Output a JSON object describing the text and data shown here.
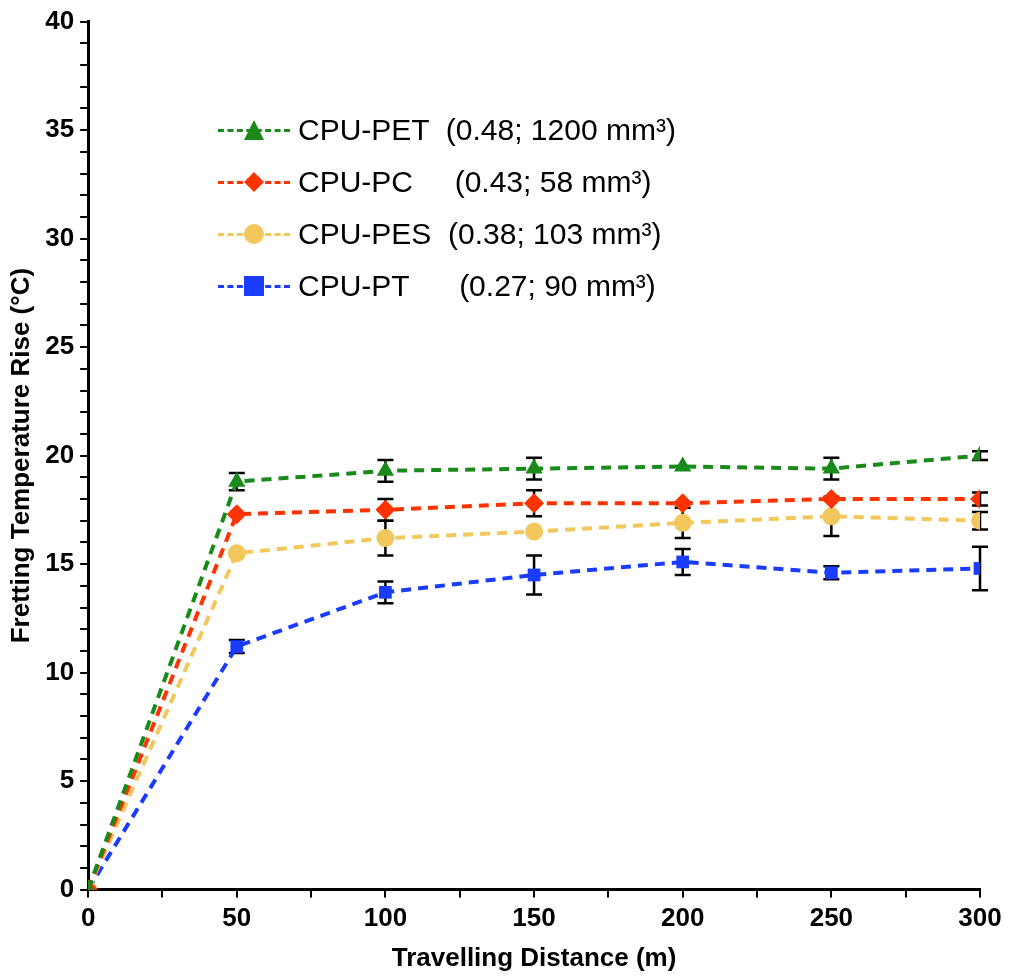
{
  "chart_data": {
    "type": "line",
    "xlabel": "Travelling Distance (m)",
    "ylabel": "Fretting Temperature Rise (°C)",
    "x": [
      0,
      50,
      100,
      150,
      200,
      250,
      300
    ],
    "xlim": [
      0,
      300
    ],
    "xticks": [
      0,
      {
        "value": 25,
        "label": null
      },
      50,
      {
        "value": 75,
        "label": null
      },
      100,
      {
        "value": 125,
        "label": null
      },
      150,
      {
        "value": 175,
        "label": null
      },
      200,
      {
        "value": 225,
        "label": null
      },
      250,
      {
        "value": 275,
        "label": null
      },
      300
    ],
    "ylim": [
      0,
      40
    ],
    "yticks": [
      0,
      {
        "value": 1,
        "label": null
      },
      {
        "value": 2,
        "label": null
      },
      {
        "value": 3,
        "label": null
      },
      {
        "value": 4,
        "label": null
      },
      5,
      {
        "value": 6,
        "label": null
      },
      {
        "value": 7,
        "label": null
      },
      {
        "value": 8,
        "label": null
      },
      {
        "value": 9,
        "label": null
      },
      10,
      {
        "value": 11,
        "label": null
      },
      {
        "value": 12,
        "label": null
      },
      {
        "value": 13,
        "label": null
      },
      {
        "value": 14,
        "label": null
      },
      15,
      {
        "value": 16,
        "label": null
      },
      {
        "value": 17,
        "label": null
      },
      {
        "value": 18,
        "label": null
      },
      {
        "value": 19,
        "label": null
      },
      20,
      {
        "value": 21,
        "label": null
      },
      {
        "value": 22,
        "label": null
      },
      {
        "value": 23,
        "label": null
      },
      {
        "value": 24,
        "label": null
      },
      25,
      {
        "value": 26,
        "label": null
      },
      {
        "value": 27,
        "label": null
      },
      {
        "value": 28,
        "label": null
      },
      {
        "value": 29,
        "label": null
      },
      30,
      {
        "value": 31,
        "label": null
      },
      {
        "value": 32,
        "label": null
      },
      {
        "value": 33,
        "label": null
      },
      {
        "value": 34,
        "label": null
      },
      35,
      {
        "value": 36,
        "label": null
      },
      {
        "value": 37,
        "label": null
      },
      {
        "value": 38,
        "label": null
      },
      {
        "value": 39,
        "label": null
      },
      40
    ],
    "grid": false,
    "legend": "top left",
    "line_style": "dashed",
    "series": [
      {
        "name": "CPU-PET  (0.48; 1200 mm³)",
        "color": "#1a8a1a",
        "marker": "triangle",
        "values": [
          0,
          18.8,
          19.3,
          19.4,
          19.5,
          19.4,
          20.0
        ],
        "errors": [
          null,
          0.4,
          0.5,
          0.5,
          null,
          0.5,
          0.2
        ]
      },
      {
        "name": "CPU-PC     (0.43; 58 mm³)",
        "color": "#ff3300",
        "marker": "diamond",
        "values": [
          0,
          17.3,
          17.5,
          17.8,
          17.8,
          18.0,
          18.0
        ],
        "errors": [
          null,
          null,
          0.5,
          0.6,
          null,
          null,
          0.3
        ]
      },
      {
        "name": "CPU-PES  (0.38; 103 mm³)",
        "color": "#f2c75c",
        "marker": "circle",
        "values": [
          0,
          15.5,
          16.2,
          16.5,
          16.9,
          17.2,
          17.0
        ],
        "errors": [
          null,
          null,
          0.8,
          null,
          0.7,
          0.9,
          0.4
        ]
      },
      {
        "name": "CPU-PT      (0.27; 90 mm³)",
        "color": "#1a3cff",
        "marker": "square",
        "values": [
          0,
          11.2,
          13.7,
          14.5,
          15.1,
          14.6,
          14.8
        ],
        "errors": [
          null,
          0.3,
          0.5,
          0.9,
          0.6,
          0.3,
          1.0
        ]
      }
    ]
  }
}
